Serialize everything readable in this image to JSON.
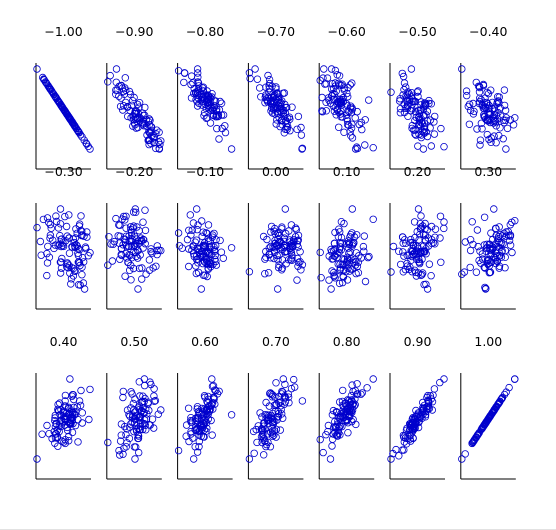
{
  "chart_data": {
    "type": "scatter",
    "layout": "small-multiples",
    "rows": 3,
    "cols": 7,
    "panels": [
      {
        "title": "−1.00",
        "r": -1.0
      },
      {
        "title": "−0.90",
        "r": -0.9
      },
      {
        "title": "−0.80",
        "r": -0.8
      },
      {
        "title": "−0.70",
        "r": -0.7
      },
      {
        "title": "−0.60",
        "r": -0.6
      },
      {
        "title": "−0.50",
        "r": -0.5
      },
      {
        "title": "−0.40",
        "r": -0.4
      },
      {
        "title": "−0.30",
        "r": -0.3
      },
      {
        "title": "−0.20",
        "r": -0.2
      },
      {
        "title": "−0.10",
        "r": -0.1
      },
      {
        "title": "0.00",
        "r": 0.0
      },
      {
        "title": "0.10",
        "r": 0.1
      },
      {
        "title": "0.20",
        "r": 0.2
      },
      {
        "title": "0.30",
        "r": 0.3
      },
      {
        "title": "0.40",
        "r": 0.4
      },
      {
        "title": "0.50",
        "r": 0.5
      },
      {
        "title": "0.60",
        "r": 0.6
      },
      {
        "title": "0.70",
        "r": 0.7
      },
      {
        "title": "0.80",
        "r": 0.8
      },
      {
        "title": "0.90",
        "r": 0.9
      },
      {
        "title": "1.00",
        "r": 1.0
      }
    ],
    "points_per_panel": 100,
    "marker": "hollow-circle",
    "marker_color": "#0000cc",
    "axis_color": "#000000",
    "ticks": false,
    "grid": false,
    "legend": "none"
  }
}
